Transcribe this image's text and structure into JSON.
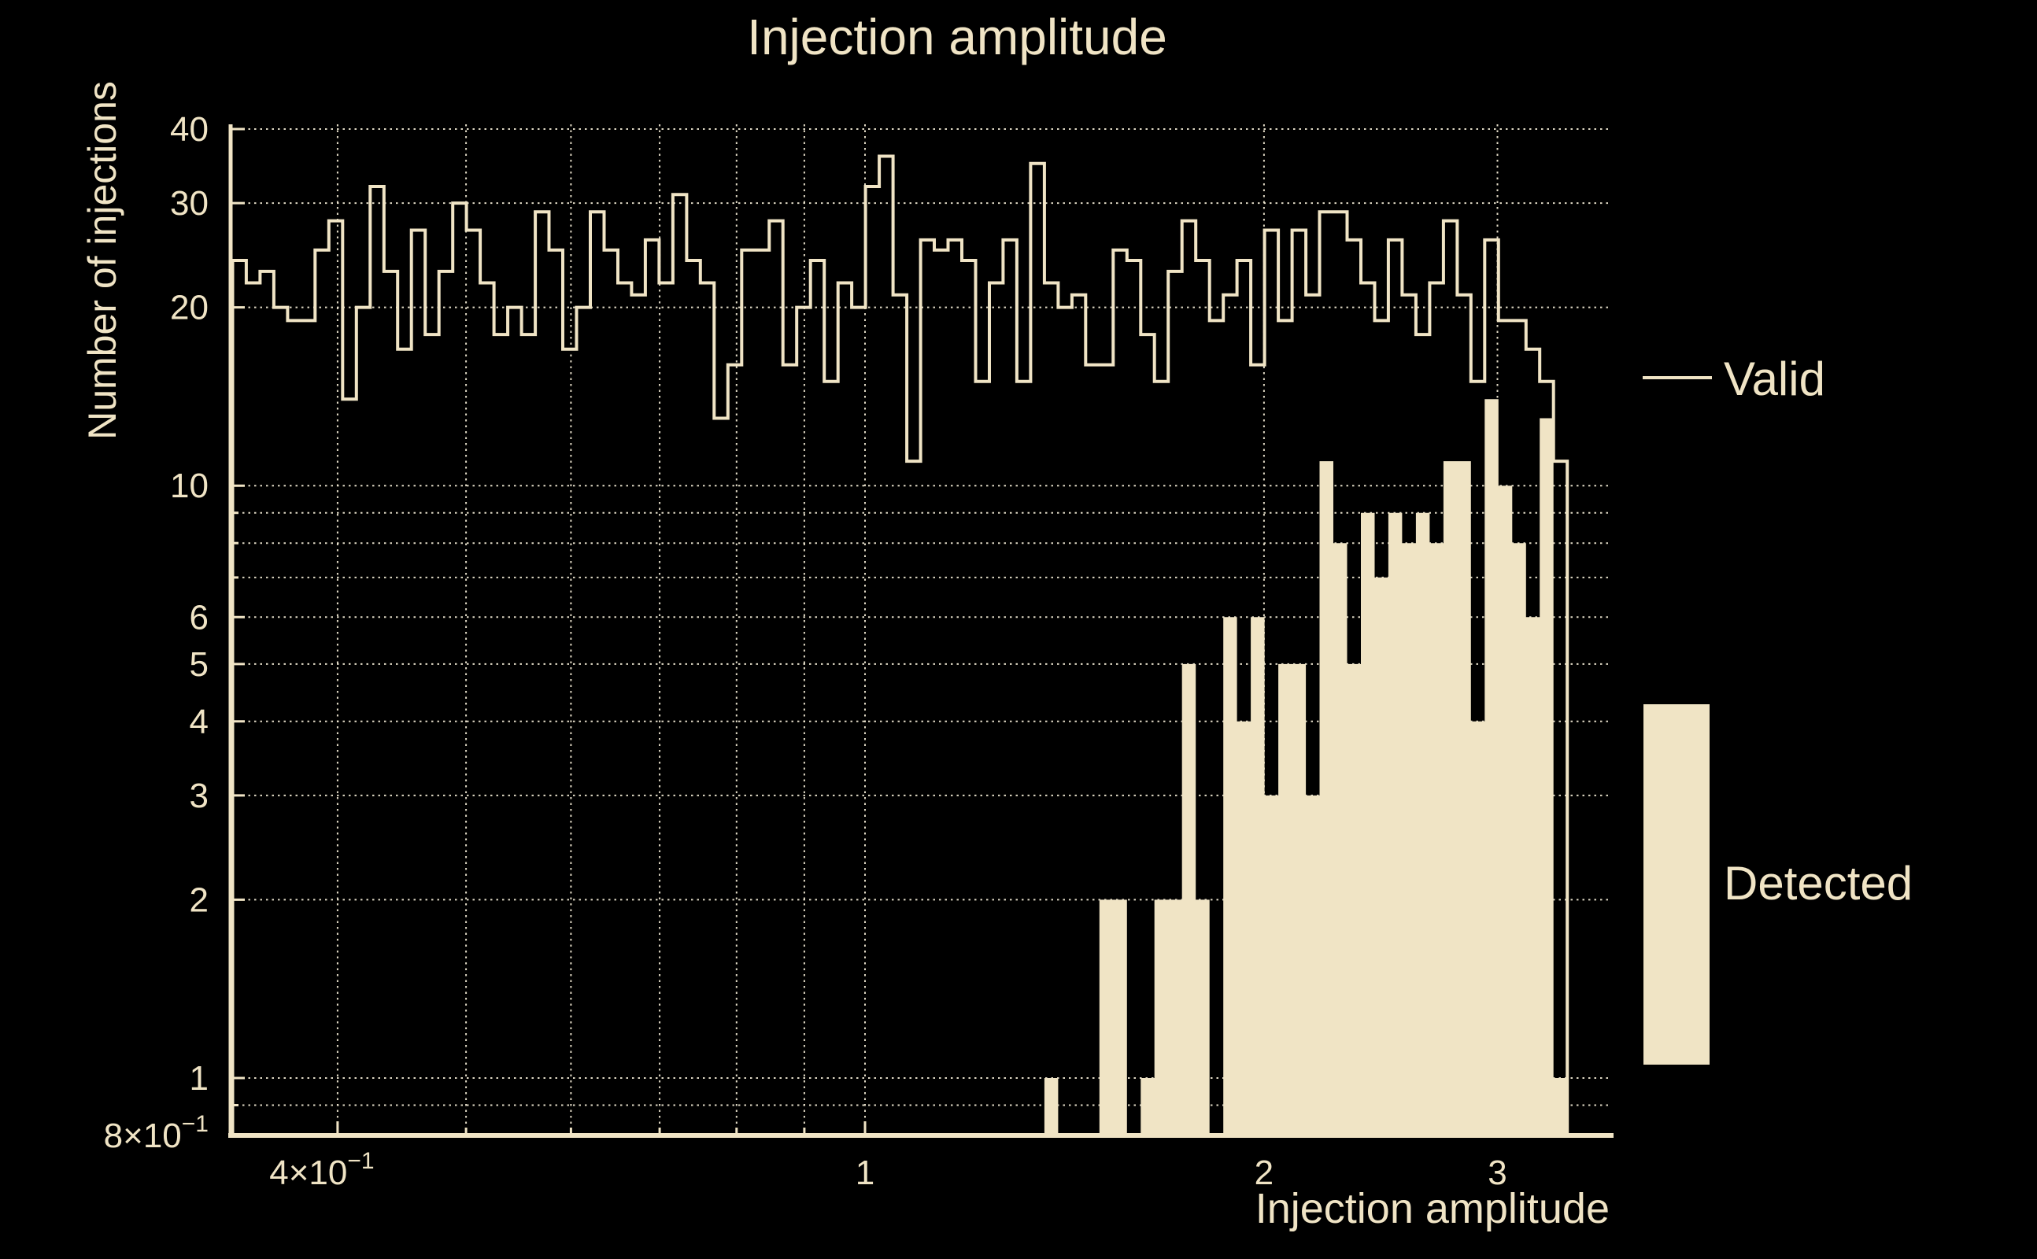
{
  "chart_data": {
    "type": "bar",
    "subtype": "log-log step histogram with filled overlay",
    "title": "Injection amplitude",
    "xlabel": "Injection amplitude",
    "ylabel": "Number of injections",
    "colors": {
      "foreground": "#F0E4C5",
      "grid": "#EDE5D0",
      "background": "#000000"
    },
    "x_axis": {
      "scale": "log",
      "min": 0.332,
      "max": 3.645,
      "ticks": [
        {
          "v": 0.4,
          "label": "4×10",
          "sup": "−1"
        },
        {
          "v": 1,
          "label": "1"
        },
        {
          "v": 2,
          "label": "2"
        },
        {
          "v": 3,
          "label": "3"
        }
      ],
      "minor_ticks": [
        0.5,
        0.6,
        0.7,
        0.8,
        0.9
      ],
      "gridlines": [
        0.4,
        0.5,
        0.6,
        0.7,
        0.8,
        0.9,
        1,
        2,
        3
      ]
    },
    "y_axis": {
      "scale": "log",
      "min": 0.8,
      "max": 40,
      "ticks": [
        {
          "v": 0.8,
          "label": "8×10",
          "sup": "−1"
        },
        {
          "v": 1,
          "label": "1"
        },
        {
          "v": 2,
          "label": "2"
        },
        {
          "v": 3,
          "label": "3"
        },
        {
          "v": 4,
          "label": "4"
        },
        {
          "v": 5,
          "label": "5"
        },
        {
          "v": 6,
          "label": "6"
        },
        {
          "v": 10,
          "label": "10"
        },
        {
          "v": 20,
          "label": "20"
        },
        {
          "v": 30,
          "label": "30"
        },
        {
          "v": 40,
          "label": "40"
        }
      ],
      "minor_ticks": [
        0.9,
        7,
        8,
        9
      ],
      "gridlines": [
        0.9,
        1,
        2,
        3,
        4,
        5,
        6,
        7,
        8,
        9,
        10,
        20,
        30,
        40
      ]
    },
    "bins": {
      "n": 97,
      "x_min": 0.3333,
      "x_max": 3.387,
      "spacing": "log-uniform"
    },
    "series": [
      {
        "name": "Valid",
        "style": "step-outline",
        "values": [
          24,
          22,
          23,
          20,
          19,
          19,
          25,
          28,
          14,
          20,
          32,
          23,
          17,
          27,
          18,
          23,
          30,
          27,
          22,
          18,
          20,
          18,
          29,
          25,
          17,
          20,
          29,
          25,
          22,
          21,
          26,
          22,
          31,
          24,
          22,
          13,
          16,
          25,
          25,
          28,
          16,
          20,
          24,
          15,
          22,
          20,
          32,
          36,
          21,
          11,
          26,
          25,
          26,
          24,
          15,
          22,
          26,
          15,
          35,
          22,
          20,
          21,
          16,
          16,
          25,
          24,
          18,
          15,
          23,
          28,
          24,
          19,
          21,
          24,
          16,
          27,
          19,
          27,
          21,
          29,
          29,
          26,
          22,
          19,
          26,
          21,
          18,
          22,
          28,
          21,
          15,
          26,
          19,
          19,
          17,
          15,
          11
        ]
      },
      {
        "name": "Detected",
        "style": "filled",
        "values": [
          0,
          0,
          0,
          0,
          0,
          0,
          0,
          0,
          0,
          0,
          0,
          0,
          0,
          0,
          0,
          0,
          0,
          0,
          0,
          0,
          0,
          0,
          0,
          0,
          0,
          0,
          0,
          0,
          0,
          0,
          0,
          0,
          0,
          0,
          0,
          0,
          0,
          0,
          0,
          0,
          0,
          0,
          0,
          0,
          0,
          0,
          0,
          0,
          0,
          0,
          0,
          0,
          0,
          0,
          0,
          0,
          0,
          0,
          0,
          1,
          0,
          0,
          0,
          2,
          2,
          0,
          1,
          2,
          2,
          5,
          2,
          0,
          6,
          4,
          6,
          3,
          5,
          5,
          3,
          11,
          8,
          5,
          9,
          7,
          9,
          8,
          9,
          8,
          11,
          11,
          4,
          14,
          10,
          8,
          6,
          13,
          1
        ]
      }
    ],
    "legend": [
      {
        "label": "Valid",
        "marker": "line"
      },
      {
        "label": "Detected",
        "marker": "box"
      }
    ]
  }
}
